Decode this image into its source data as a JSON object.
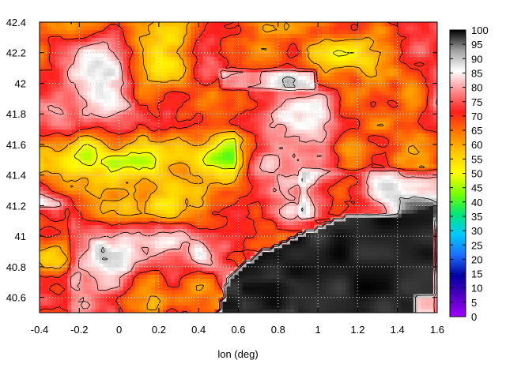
{
  "chart_data": {
    "type": "heatmap",
    "title": "",
    "xlabel": "lon (deg)",
    "ylabel": "",
    "xlim": [
      -0.4,
      1.6
    ],
    "ylim": [
      40.5,
      42.4
    ],
    "x_ticks": [
      -0.4,
      -0.2,
      0,
      0.2,
      0.4,
      0.6,
      0.8,
      1,
      1.2,
      1.4,
      1.6
    ],
    "x_tick_labels": [
      "-0.4",
      "-0.2",
      "0",
      "0.2",
      "0.4",
      "0.6",
      "0.8",
      "1",
      "1.2",
      "1.4",
      "1.6"
    ],
    "y_ticks": [
      40.6,
      40.8,
      41,
      41.2,
      41.4,
      41.6,
      41.8,
      42,
      42.2,
      42.4
    ],
    "y_tick_labels": [
      "40.6",
      "40.8",
      "41",
      "41.2",
      "41.4",
      "41.6",
      "41.8",
      "42",
      "42.2",
      "42.4"
    ],
    "colorbar": {
      "range": [
        0,
        100
      ],
      "ticks": [
        0,
        5,
        10,
        15,
        20,
        25,
        30,
        35,
        40,
        45,
        50,
        55,
        60,
        65,
        70,
        75,
        80,
        85,
        90,
        95,
        100
      ],
      "tick_labels": [
        "0",
        "5",
        "10",
        "15",
        "20",
        "25",
        "30",
        "35",
        "40",
        "45",
        "50",
        "55",
        "60",
        "65",
        "70",
        "75",
        "80",
        "85",
        "90",
        "95",
        "100"
      ],
      "colors": [
        "#a000ff",
        "#5000c0",
        "#0000a0",
        "#1e6eff",
        "#00c8ff",
        "#00e678",
        "#78ff00",
        "#ffff00",
        "#ffc800",
        "#ff7800",
        "#ff1e1e",
        "#ff8c8c",
        "#ffffff",
        "#a0a0a0",
        "#000000"
      ]
    },
    "grid": true,
    "contour_lines": true
  }
}
